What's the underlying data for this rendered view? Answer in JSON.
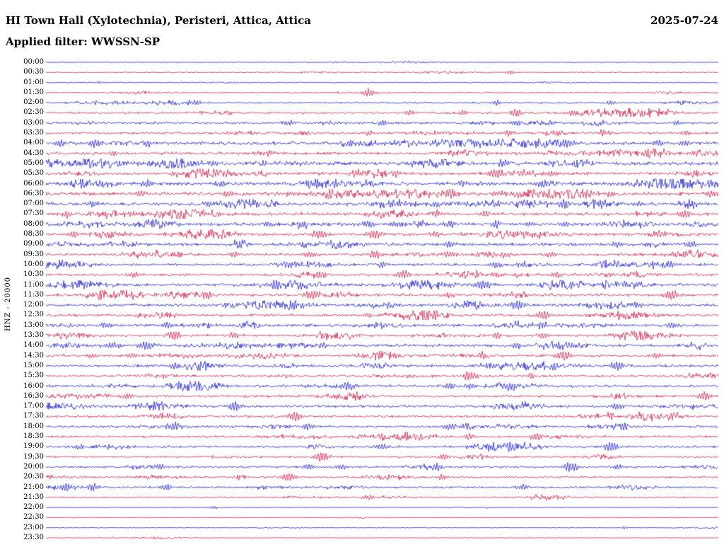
{
  "header": {
    "station_title": "HI Town Hall (Xylotechnia), Peristeri, Attica, Attica",
    "date": "2025-07-24",
    "filter_label": "Applied filter: WWSSN-SP"
  },
  "axis": {
    "channel_label": "HNZ - 20000"
  },
  "chart_data": {
    "type": "seismogram",
    "subtype": "helicorder-daily",
    "minutes_per_row": 30,
    "row_start": "00:00",
    "row_end": "23:30",
    "colors": {
      "blue": "#0000cc",
      "red": "#cc0033"
    },
    "rows": [
      {
        "time": "00:00",
        "color": "blue",
        "amp": 0.35,
        "events": []
      },
      {
        "time": "00:30",
        "color": "red",
        "amp": 0.45,
        "events": [
          [
            0.69,
            3
          ]
        ]
      },
      {
        "time": "01:00",
        "color": "blue",
        "amp": 0.45,
        "events": [
          [
            0.08,
            2
          ]
        ]
      },
      {
        "time": "01:30",
        "color": "red",
        "amp": 0.6,
        "events": [
          [
            0.48,
            5
          ]
        ]
      },
      {
        "time": "02:00",
        "color": "blue",
        "amp": 0.8,
        "events": [
          [
            0.22,
            4
          ],
          [
            0.67,
            3
          ],
          [
            0.84,
            3
          ]
        ]
      },
      {
        "time": "02:30",
        "color": "red",
        "amp": 0.9,
        "events": [
          [
            0.27,
            3
          ],
          [
            0.54,
            3.5
          ],
          [
            0.62,
            3
          ],
          [
            0.7,
            5
          ],
          [
            0.78,
            3
          ]
        ]
      },
      {
        "time": "03:00",
        "color": "blue",
        "amp": 1.0,
        "events": [
          [
            0.36,
            4
          ],
          [
            0.5,
            3.5
          ],
          [
            0.7,
            4
          ],
          [
            0.75,
            3
          ],
          [
            0.94,
            3
          ]
        ]
      },
      {
        "time": "03:30",
        "color": "red",
        "amp": 1.0,
        "events": [
          [
            0.48,
            3
          ],
          [
            0.69,
            4
          ],
          [
            0.76,
            3.5
          ],
          [
            0.83,
            4
          ],
          [
            0.95,
            3
          ]
        ]
      },
      {
        "time": "04:00",
        "color": "blue",
        "amp": 1.4,
        "events": [
          [
            0.02,
            4
          ],
          [
            0.07,
            5
          ],
          [
            0.15,
            4
          ],
          [
            0.58,
            4
          ],
          [
            0.66,
            3.5
          ],
          [
            0.77,
            5
          ],
          [
            0.91,
            4
          ],
          [
            0.95,
            4
          ]
        ]
      },
      {
        "time": "04:30",
        "color": "red",
        "amp": 1.2,
        "events": [
          [
            0.1,
            3
          ],
          [
            0.33,
            3
          ],
          [
            0.65,
            3
          ],
          [
            0.9,
            6
          ],
          [
            0.97,
            3.5
          ]
        ]
      },
      {
        "time": "05:00",
        "color": "blue",
        "amp": 1.5,
        "events": [
          [
            0.09,
            4
          ],
          [
            0.25,
            4
          ],
          [
            0.68,
            5
          ],
          [
            0.8,
            4
          ]
        ]
      },
      {
        "time": "05:30",
        "color": "red",
        "amp": 1.3,
        "events": [
          [
            0.19,
            3.5
          ],
          [
            0.27,
            3.5
          ],
          [
            0.46,
            4
          ],
          [
            0.52,
            3.5
          ],
          [
            0.67,
            6
          ],
          [
            0.75,
            4
          ]
        ]
      },
      {
        "time": "06:00",
        "color": "blue",
        "amp": 1.5,
        "events": [
          [
            0.15,
            4
          ],
          [
            0.26,
            4
          ],
          [
            0.43,
            4.5
          ],
          [
            0.62,
            4
          ],
          [
            0.74,
            5
          ],
          [
            0.93,
            4
          ]
        ]
      },
      {
        "time": "06:30",
        "color": "red",
        "amp": 1.4,
        "events": [
          [
            0.14,
            4
          ],
          [
            0.27,
            4
          ],
          [
            0.42,
            4
          ],
          [
            0.6,
            6
          ],
          [
            0.67,
            4
          ],
          [
            0.75,
            6
          ],
          [
            0.84,
            4
          ],
          [
            0.99,
            4
          ]
        ]
      },
      {
        "time": "07:00",
        "color": "blue",
        "amp": 1.4,
        "events": [
          [
            0.07,
            4
          ],
          [
            0.24,
            4
          ],
          [
            0.58,
            4
          ],
          [
            0.67,
            4.5
          ],
          [
            0.71,
            4
          ],
          [
            0.77,
            5
          ],
          [
            0.83,
            4
          ],
          [
            0.88,
            4
          ],
          [
            0.95,
            4.5
          ]
        ]
      },
      {
        "time": "07:30",
        "color": "red",
        "amp": 1.3,
        "events": [
          [
            0.03,
            4
          ],
          [
            0.13,
            4
          ],
          [
            0.19,
            4
          ],
          [
            0.58,
            4.5
          ],
          [
            0.65,
            4
          ],
          [
            0.95,
            5
          ]
        ]
      },
      {
        "time": "08:00",
        "color": "blue",
        "amp": 1.4,
        "events": [
          [
            0.16,
            4.5
          ],
          [
            0.33,
            4
          ],
          [
            0.38,
            4
          ],
          [
            0.48,
            4.5
          ],
          [
            0.52,
            4
          ],
          [
            0.6,
            4
          ],
          [
            0.67,
            4.5
          ],
          [
            0.72,
            4
          ],
          [
            0.77,
            4
          ]
        ]
      },
      {
        "time": "08:30",
        "color": "red",
        "amp": 1.2,
        "events": [
          [
            0.04,
            3.5
          ],
          [
            0.09,
            3.5
          ],
          [
            0.4,
            4
          ],
          [
            0.41,
            4
          ],
          [
            0.49,
            6
          ],
          [
            0.58,
            4
          ],
          [
            0.71,
            4
          ],
          [
            0.91,
            4
          ]
        ]
      },
      {
        "time": "09:00",
        "color": "blue",
        "amp": 1.3,
        "events": [
          [
            0.29,
            4
          ],
          [
            0.6,
            4.5
          ],
          [
            0.85,
            4
          ],
          [
            0.96,
            4.5
          ]
        ]
      },
      {
        "time": "09:30",
        "color": "red",
        "amp": 1.1,
        "events": [
          [
            0.28,
            3.5
          ],
          [
            0.39,
            3.5
          ],
          [
            0.49,
            4.5
          ],
          [
            0.6,
            3.5
          ],
          [
            0.68,
            4
          ],
          [
            0.75,
            3.5
          ]
        ]
      },
      {
        "time": "10:00",
        "color": "blue",
        "amp": 1.1,
        "events": [
          [
            0.36,
            4
          ],
          [
            0.5,
            3.5
          ],
          [
            0.67,
            4
          ],
          [
            0.71,
            3.5
          ],
          [
            0.83,
            3.5
          ],
          [
            0.93,
            4
          ]
        ]
      },
      {
        "time": "10:30",
        "color": "red",
        "amp": 1.1,
        "events": [
          [
            0.13,
            3.5
          ],
          [
            0.41,
            3.5
          ],
          [
            0.53,
            6
          ],
          [
            0.67,
            3.5
          ],
          [
            0.76,
            4
          ]
        ]
      },
      {
        "time": "11:00",
        "color": "blue",
        "amp": 1.3,
        "events": [
          [
            0.34,
            4.5
          ],
          [
            0.65,
            6
          ]
        ]
      },
      {
        "time": "11:30",
        "color": "red",
        "amp": 1.2,
        "events": [
          [
            0.08,
            3.5
          ],
          [
            0.12,
            6
          ],
          [
            0.24,
            3.5
          ],
          [
            0.39,
            4
          ],
          [
            0.4,
            4
          ],
          [
            0.6,
            3.5
          ],
          [
            0.93,
            6
          ]
        ]
      },
      {
        "time": "12:00",
        "color": "blue",
        "amp": 1.2,
        "events": [
          [
            0.27,
            3.5
          ],
          [
            0.37,
            4
          ],
          [
            0.51,
            4
          ],
          [
            0.64,
            4
          ],
          [
            0.7,
            6
          ],
          [
            0.88,
            4
          ]
        ]
      },
      {
        "time": "12:30",
        "color": "red",
        "amp": 1.1,
        "events": [
          [
            0.48,
            3.5
          ],
          [
            0.56,
            4
          ],
          [
            0.57,
            6
          ],
          [
            0.74,
            6
          ]
        ]
      },
      {
        "time": "13:00",
        "color": "blue",
        "amp": 1.2,
        "events": [
          [
            0.09,
            4
          ],
          [
            0.18,
            4
          ],
          [
            0.74,
            4.5
          ],
          [
            0.93,
            4
          ]
        ]
      },
      {
        "time": "13:30",
        "color": "red",
        "amp": 1.1,
        "events": [
          [
            0.19,
            6
          ],
          [
            0.28,
            4
          ],
          [
            0.41,
            4
          ],
          [
            0.67,
            3.5
          ],
          [
            0.74,
            4
          ]
        ]
      },
      {
        "time": "14:00",
        "color": "blue",
        "amp": 1.2,
        "events": [
          [
            0.1,
            4.5
          ],
          [
            0.15,
            6
          ],
          [
            0.41,
            4
          ],
          [
            0.7,
            4
          ]
        ]
      },
      {
        "time": "14:30",
        "color": "red",
        "amp": 1.1,
        "events": [
          [
            0.07,
            3.5
          ],
          [
            0.13,
            3.5
          ],
          [
            0.65,
            4
          ],
          [
            0.77,
            6
          ],
          [
            0.91,
            4
          ]
        ]
      },
      {
        "time": "15:00",
        "color": "blue",
        "amp": 1.1,
        "events": [
          [
            0.19,
            4
          ],
          [
            0.66,
            4
          ],
          [
            0.75,
            4
          ],
          [
            0.85,
            6
          ]
        ]
      },
      {
        "time": "15:30",
        "color": "red",
        "amp": 1.0,
        "events": [
          [
            0.63,
            6
          ],
          [
            0.72,
            3.5
          ]
        ]
      },
      {
        "time": "16:00",
        "color": "blue",
        "amp": 1.1,
        "events": [
          [
            0.45,
            4.5
          ],
          [
            0.6,
            4
          ],
          [
            0.63,
            4
          ],
          [
            0.69,
            6
          ]
        ]
      },
      {
        "time": "16:30",
        "color": "red",
        "amp": 1.0,
        "events": [
          [
            0.12,
            4
          ],
          [
            0.98,
            6
          ]
        ]
      },
      {
        "time": "17:00",
        "color": "blue",
        "amp": 1.1,
        "events": [
          [
            0.28,
            6
          ],
          [
            0.85,
            4.5
          ]
        ]
      },
      {
        "time": "17:30",
        "color": "red",
        "amp": 1.0,
        "events": [
          [
            0.37,
            6
          ],
          [
            0.84,
            4
          ]
        ]
      },
      {
        "time": "18:00",
        "color": "blue",
        "amp": 1.0,
        "events": [
          [
            0.19,
            6
          ],
          [
            0.39,
            4
          ],
          [
            0.6,
            4.5
          ],
          [
            0.86,
            4
          ]
        ]
      },
      {
        "time": "18:30",
        "color": "red",
        "amp": 0.95,
        "events": [
          [
            0.63,
            4
          ],
          [
            0.73,
            4.5
          ]
        ]
      },
      {
        "time": "19:00",
        "color": "blue",
        "amp": 0.95,
        "events": [
          [
            0.05,
            4
          ],
          [
            0.5,
            4
          ],
          [
            0.69,
            6
          ],
          [
            0.84,
            6
          ]
        ]
      },
      {
        "time": "19:30",
        "color": "red",
        "amp": 0.85,
        "events": [
          [
            0.41,
            6
          ],
          [
            0.59,
            4
          ]
        ]
      },
      {
        "time": "20:00",
        "color": "blue",
        "amp": 0.85,
        "events": [
          [
            0.17,
            4
          ],
          [
            0.39,
            4
          ],
          [
            0.44,
            4
          ],
          [
            0.58,
            4
          ],
          [
            0.78,
            6
          ],
          [
            0.85,
            4
          ]
        ]
      },
      {
        "time": "20:30",
        "color": "red",
        "amp": 0.85,
        "events": [
          [
            0.36,
            6
          ],
          [
            0.59,
            4
          ]
        ]
      },
      {
        "time": "21:00",
        "color": "blue",
        "amp": 0.85,
        "events": [
          [
            0.03,
            6
          ],
          [
            0.07,
            4.5
          ],
          [
            0.18,
            4
          ],
          [
            0.71,
            4
          ]
        ]
      },
      {
        "time": "21:30",
        "color": "red",
        "amp": 0.7,
        "events": [
          [
            0.48,
            3.5
          ]
        ]
      },
      {
        "time": "22:00",
        "color": "blue",
        "amp": 0.35,
        "events": [
          [
            0.25,
            2.5
          ]
        ]
      },
      {
        "time": "22:30",
        "color": "red",
        "amp": 0.3,
        "events": []
      },
      {
        "time": "23:00",
        "color": "blue",
        "amp": 0.3,
        "events": [
          [
            0.86,
            2
          ]
        ]
      },
      {
        "time": "23:30",
        "color": "red",
        "amp": 0.3,
        "events": []
      }
    ]
  }
}
